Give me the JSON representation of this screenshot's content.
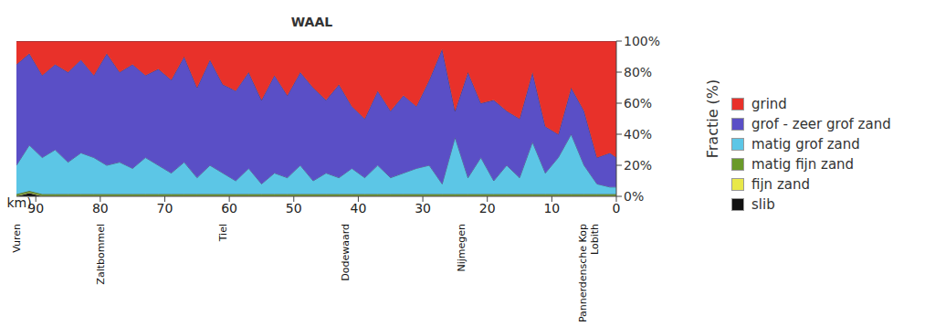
{
  "chart_data": {
    "type": "area",
    "title": "WAAL",
    "x_label": "(km)",
    "y_label": "Fractie (%)",
    "stacked": true,
    "legend": "right",
    "xlim": [
      0,
      93
    ],
    "xticks": [
      0,
      10,
      20,
      30,
      40,
      50,
      60,
      70,
      80,
      90
    ],
    "ylim": [
      0,
      100
    ],
    "yticks": [
      {
        "value": 0,
        "label": "0%"
      },
      {
        "value": 20,
        "label": "20%"
      },
      {
        "value": 40,
        "label": "40%"
      },
      {
        "value": 60,
        "label": "60%"
      },
      {
        "value": 80,
        "label": "80%"
      },
      {
        "value": 100,
        "label": "100%"
      }
    ],
    "annotations": [
      {
        "x": 93,
        "label": "Vuren"
      },
      {
        "x": 80,
        "label": "Zaltbommel"
      },
      {
        "x": 61,
        "label": "Tiel"
      },
      {
        "x": 42,
        "label": "Dodewaard"
      },
      {
        "x": 24,
        "label": "Nijmegen"
      },
      {
        "x": 5.2,
        "label": "Pannerdensche Kop"
      },
      {
        "x": 3.4,
        "label": "Lobith"
      }
    ],
    "x": [
      93,
      91,
      89,
      87,
      85,
      83,
      81,
      79,
      77,
      75,
      73,
      71,
      69,
      67,
      65,
      63,
      61,
      59,
      57,
      55,
      53,
      51,
      49,
      47,
      45,
      43,
      41,
      39,
      37,
      35,
      33,
      31,
      29,
      27,
      25,
      23,
      21,
      19,
      17,
      15,
      13,
      11,
      9,
      7,
      5,
      3,
      1,
      0
    ],
    "series": [
      {
        "name": "grind",
        "color": "#e8312a",
        "values": [
          15,
          8,
          22,
          15,
          20,
          12,
          22,
          8,
          20,
          15,
          22,
          18,
          25,
          10,
          30,
          12,
          28,
          32,
          20,
          38,
          22,
          35,
          20,
          30,
          38,
          28,
          42,
          50,
          32,
          45,
          35,
          42,
          25,
          5,
          45,
          20,
          40,
          38,
          45,
          50,
          20,
          55,
          60,
          30,
          45,
          75,
          72,
          75
        ]
      },
      {
        "name": "grof - zeer grof zand",
        "color": "#5a4fc6",
        "values": [
          65,
          59,
          53,
          55,
          58,
          60,
          53,
          72,
          58,
          67,
          53,
          62,
          60,
          68,
          58,
          68,
          57,
          58,
          62,
          54,
          63,
          53,
          60,
          60,
          47,
          60,
          40,
          38,
          48,
          43,
          50,
          40,
          55,
          87,
          17,
          68,
          35,
          52,
          35,
          38,
          45,
          30,
          15,
          30,
          35,
          17,
          22,
          19
        ]
      },
      {
        "name": "matig grof zand",
        "color": "#5cc6e6",
        "values": [
          18.5,
          29.5,
          23.5,
          28.5,
          20.5,
          26.5,
          23.5,
          18.5,
          20.5,
          16.5,
          23.5,
          18.5,
          13.5,
          20.5,
          10.5,
          18.5,
          13.5,
          8.5,
          16.5,
          6.5,
          13.5,
          10.5,
          18.5,
          8.5,
          13.5,
          10.5,
          16.5,
          10.5,
          18.5,
          10.5,
          13.5,
          16.5,
          18.5,
          6.5,
          36.5,
          10.5,
          23.5,
          8.5,
          18.5,
          10.5,
          33.5,
          13.5,
          23.5,
          38.5,
          18.5,
          6.5,
          4.5,
          4.5
        ]
      },
      {
        "name": "matig fijn zand",
        "color": "#6a9a2a",
        "values": [
          1,
          1,
          1,
          1,
          1,
          1,
          1,
          1,
          1,
          1,
          1,
          1,
          1,
          1,
          1,
          1,
          1,
          1,
          1,
          1,
          1,
          1,
          1,
          1,
          1,
          1,
          1,
          1,
          1,
          1,
          1,
          1,
          1,
          1,
          1,
          1,
          1,
          1,
          1,
          1,
          1,
          1,
          1,
          1,
          1,
          1,
          1,
          1
        ]
      },
      {
        "name": "fijn zand",
        "color": "#e8e84a",
        "values": [
          0.5,
          0.5,
          0.5,
          0.5,
          0.5,
          0.5,
          0.5,
          0.5,
          0.5,
          0.5,
          0.5,
          0.5,
          0.5,
          0.5,
          0.5,
          0.5,
          0.5,
          0.5,
          0.5,
          0.5,
          0.5,
          0.5,
          0.5,
          0.5,
          0.5,
          0.5,
          0.5,
          0.5,
          0.5,
          0.5,
          0.5,
          0.5,
          0.5,
          0.5,
          0.5,
          0.5,
          0.5,
          0.5,
          0.5,
          0.5,
          0.5,
          0.5,
          0.5,
          0.5,
          0.5,
          0.5,
          0.5,
          0.5
        ]
      },
      {
        "name": "slib",
        "color": "#111111",
        "values": [
          0,
          2,
          0,
          0,
          0,
          0,
          0,
          0,
          0,
          0,
          0,
          0,
          0,
          0,
          0,
          0,
          0,
          0,
          0,
          0,
          0,
          0,
          0,
          0,
          0,
          0,
          0,
          0,
          0,
          0,
          0,
          0,
          0,
          0,
          0,
          0,
          0,
          0,
          0,
          0,
          0,
          0,
          0,
          0,
          0,
          0,
          0,
          0
        ]
      }
    ]
  }
}
